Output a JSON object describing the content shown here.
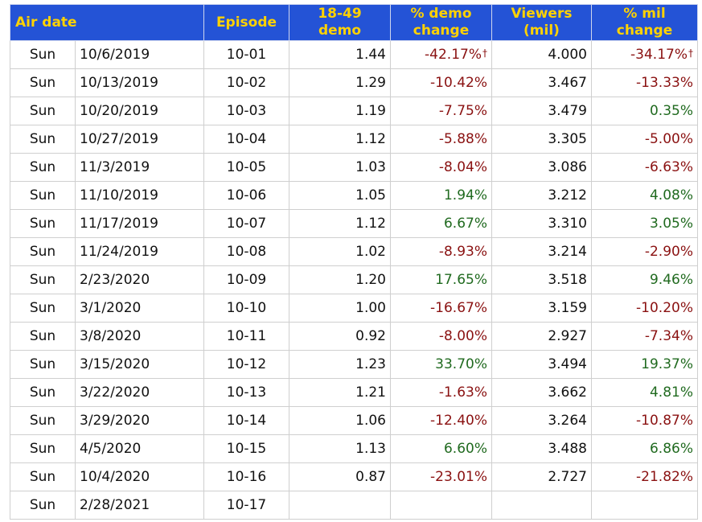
{
  "headers": {
    "air_date": "Air date",
    "episode": "Episode",
    "demo_line1": "18-49",
    "demo_line2": "demo",
    "demo_change_line1": "% demo",
    "demo_change_line2": "change",
    "viewers_line1": "Viewers",
    "viewers_line2": "(mil)",
    "mil_change_line1": "% mil",
    "mil_change_line2": "change"
  },
  "colors": {
    "header_bg": "#2453d6",
    "header_text": "#ffd200",
    "negative": "#8a1111",
    "positive": "#206a1f"
  },
  "rows": [
    {
      "day": "Sun",
      "date": "10/6/2019",
      "episode": "10-01",
      "demo": "1.44",
      "demo_change": "-42.17%",
      "demo_change_mark": "†",
      "viewers": "4.000",
      "mil_change": "-34.17%",
      "mil_change_mark": "†"
    },
    {
      "day": "Sun",
      "date": "10/13/2019",
      "episode": "10-02",
      "demo": "1.29",
      "demo_change": "-10.42%",
      "viewers": "3.467",
      "mil_change": "-13.33%"
    },
    {
      "day": "Sun",
      "date": "10/20/2019",
      "episode": "10-03",
      "demo": "1.19",
      "demo_change": "-7.75%",
      "viewers": "3.479",
      "mil_change": "0.35%"
    },
    {
      "day": "Sun",
      "date": "10/27/2019",
      "episode": "10-04",
      "demo": "1.12",
      "demo_change": "-5.88%",
      "viewers": "3.305",
      "mil_change": "-5.00%"
    },
    {
      "day": "Sun",
      "date": "11/3/2019",
      "episode": "10-05",
      "demo": "1.03",
      "demo_change": "-8.04%",
      "viewers": "3.086",
      "mil_change": "-6.63%"
    },
    {
      "day": "Sun",
      "date": "11/10/2019",
      "episode": "10-06",
      "demo": "1.05",
      "demo_change": "1.94%",
      "viewers": "3.212",
      "mil_change": "4.08%"
    },
    {
      "day": "Sun",
      "date": "11/17/2019",
      "episode": "10-07",
      "demo": "1.12",
      "demo_change": "6.67%",
      "viewers": "3.310",
      "mil_change": "3.05%"
    },
    {
      "day": "Sun",
      "date": "11/24/2019",
      "episode": "10-08",
      "demo": "1.02",
      "demo_change": "-8.93%",
      "viewers": "3.214",
      "mil_change": "-2.90%"
    },
    {
      "day": "Sun",
      "date": "2/23/2020",
      "episode": "10-09",
      "demo": "1.20",
      "demo_change": "17.65%",
      "viewers": "3.518",
      "mil_change": "9.46%"
    },
    {
      "day": "Sun",
      "date": "3/1/2020",
      "episode": "10-10",
      "demo": "1.00",
      "demo_change": "-16.67%",
      "viewers": "3.159",
      "mil_change": "-10.20%"
    },
    {
      "day": "Sun",
      "date": "3/8/2020",
      "episode": "10-11",
      "demo": "0.92",
      "demo_change": "-8.00%",
      "viewers": "2.927",
      "mil_change": "-7.34%"
    },
    {
      "day": "Sun",
      "date": "3/15/2020",
      "episode": "10-12",
      "demo": "1.23",
      "demo_change": "33.70%",
      "viewers": "3.494",
      "mil_change": "19.37%"
    },
    {
      "day": "Sun",
      "date": "3/22/2020",
      "episode": "10-13",
      "demo": "1.21",
      "demo_change": "-1.63%",
      "viewers": "3.662",
      "mil_change": "4.81%"
    },
    {
      "day": "Sun",
      "date": "3/29/2020",
      "episode": "10-14",
      "demo": "1.06",
      "demo_change": "-12.40%",
      "viewers": "3.264",
      "mil_change": "-10.87%"
    },
    {
      "day": "Sun",
      "date": "4/5/2020",
      "episode": "10-15",
      "demo": "1.13",
      "demo_change": "6.60%",
      "viewers": "3.488",
      "mil_change": "6.86%"
    },
    {
      "day": "Sun",
      "date": "10/4/2020",
      "episode": "10-16",
      "demo": "0.87",
      "demo_change": "-23.01%",
      "viewers": "2.727",
      "mil_change": "-21.82%"
    },
    {
      "day": "Sun",
      "date": "2/28/2021",
      "episode": "10-17",
      "demo": "",
      "demo_change": "",
      "viewers": "",
      "mil_change": ""
    }
  ]
}
